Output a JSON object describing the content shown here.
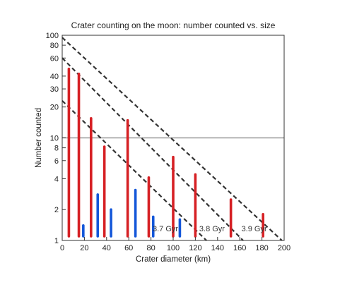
{
  "chart_data": {
    "type": "bar",
    "title": "Crater counting on the moon: number counted vs. size",
    "xlabel": "Crater diameter (km)",
    "ylabel": "Number counted",
    "x_scale": "linear",
    "y_scale": "log",
    "xlim": [
      0,
      200
    ],
    "ylim": [
      1,
      100
    ],
    "x_ticks": [
      0,
      20,
      40,
      60,
      80,
      100,
      120,
      140,
      160,
      180,
      200
    ],
    "y_ticks": [
      1,
      2,
      4,
      6,
      8,
      10,
      20,
      30,
      40,
      60,
      80,
      100
    ],
    "grid": "horizontal line at 10",
    "legend": "none",
    "colors": {
      "red_series": "#d62024",
      "blue_series": "#1457d9",
      "isochron": "#333333",
      "reference_line": "#9a9a9a",
      "axis": "#333333"
    },
    "series": [
      {
        "color": "red",
        "points": [
          {
            "x": 6,
            "y": 47
          },
          {
            "x": 15,
            "y": 42
          },
          {
            "x": 26,
            "y": 15.5
          },
          {
            "x": 38,
            "y": 8.2
          },
          {
            "x": 59,
            "y": 14.8
          },
          {
            "x": 78,
            "y": 4.1
          },
          {
            "x": 100,
            "y": 6.5
          },
          {
            "x": 120,
            "y": 4.4
          },
          {
            "x": 152,
            "y": 2.5
          },
          {
            "x": 181,
            "y": 1.8
          }
        ]
      },
      {
        "color": "blue",
        "points": [
          {
            "x": 19,
            "y": 1.4
          },
          {
            "x": 32,
            "y": 2.8
          },
          {
            "x": 44,
            "y": 2.0
          },
          {
            "x": 66,
            "y": 3.1
          },
          {
            "x": 82,
            "y": 1.7
          },
          {
            "x": 106,
            "y": 1.6
          }
        ]
      }
    ],
    "isochrons": [
      {
        "label": "3.7 Gyr",
        "start": [
          0,
          23
        ],
        "end": [
          130,
          1
        ],
        "label_at": [
          93,
          1.31
        ]
      },
      {
        "label": "3.8 Gyr",
        "start": [
          0,
          60
        ],
        "end": [
          163,
          1
        ],
        "label_at": [
          135,
          1.31
        ]
      },
      {
        "label": "3.9 Gyr",
        "start": [
          0,
          95
        ],
        "end": [
          198,
          1
        ],
        "label_at": [
          173,
          1.31
        ]
      }
    ],
    "reference_line_y": 10
  }
}
